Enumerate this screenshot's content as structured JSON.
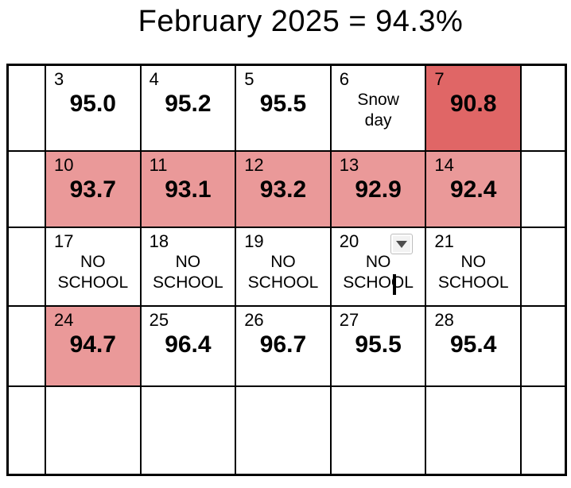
{
  "title": "February 2025 = 94.3%",
  "colors": {
    "highlight_strong": "#e06666",
    "highlight_light": "#ea9999",
    "grid_line": "#000000",
    "dropdown_button_bg": "#f2f2f2",
    "dropdown_button_border": "#bdbdbd",
    "dropdown_arrow": "#4d4d4d",
    "text_caret": "#000000"
  },
  "calendar": {
    "weeks": [
      {
        "days": [
          {
            "day": "3",
            "value": "95.0",
            "bg": "none"
          },
          {
            "day": "4",
            "value": "95.2",
            "bg": "none"
          },
          {
            "day": "5",
            "value": "95.5",
            "bg": "none"
          },
          {
            "day": "6",
            "note": [
              "Snow",
              "day"
            ],
            "bg": "none"
          },
          {
            "day": "7",
            "value": "90.8",
            "bg": "strong"
          }
        ]
      },
      {
        "days": [
          {
            "day": "10",
            "value": "93.7",
            "bg": "light"
          },
          {
            "day": "11",
            "value": "93.1",
            "bg": "light"
          },
          {
            "day": "12",
            "value": "93.2",
            "bg": "light"
          },
          {
            "day": "13",
            "value": "92.9",
            "bg": "light"
          },
          {
            "day": "14",
            "value": "92.4",
            "bg": "light"
          }
        ]
      },
      {
        "days": [
          {
            "day": "17",
            "note": [
              "NO",
              "SCHOOL"
            ],
            "bg": "none"
          },
          {
            "day": "18",
            "note": [
              "NO",
              "SCHOOL"
            ],
            "bg": "none"
          },
          {
            "day": "19",
            "note": [
              "NO",
              "SCHOOL"
            ],
            "bg": "none"
          },
          {
            "day": "20",
            "note": [
              "NO",
              "SCHOOL"
            ],
            "bg": "none",
            "dropdown": true,
            "caret": {
              "line": 1,
              "char": 4
            }
          },
          {
            "day": "21",
            "note": [
              "NO",
              "SCHOOL"
            ],
            "bg": "none"
          }
        ]
      },
      {
        "days": [
          {
            "day": "24",
            "value": "94.7",
            "bg": "light"
          },
          {
            "day": "25",
            "value": "96.4",
            "bg": "none"
          },
          {
            "day": "26",
            "value": "96.7",
            "bg": "none"
          },
          {
            "day": "27",
            "value": "95.5",
            "bg": "none"
          },
          {
            "day": "28",
            "value": "95.4",
            "bg": "none"
          }
        ]
      },
      {
        "days": [
          {
            "day": "",
            "bg": "none"
          },
          {
            "day": "",
            "bg": "none"
          },
          {
            "day": "",
            "bg": "none"
          },
          {
            "day": "",
            "bg": "none"
          },
          {
            "day": "",
            "bg": "none"
          }
        ]
      }
    ]
  }
}
